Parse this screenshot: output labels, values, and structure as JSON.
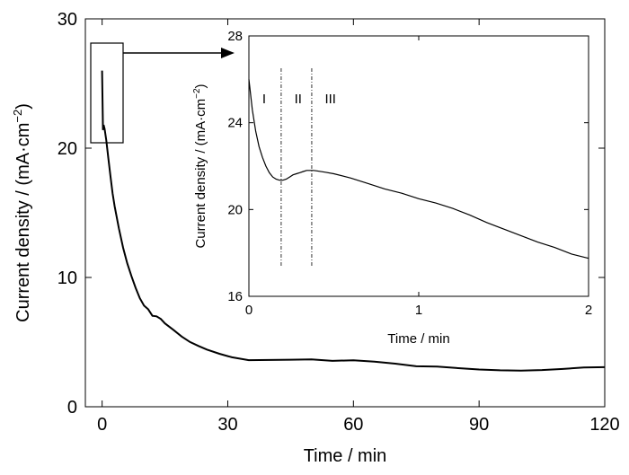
{
  "chart_data": [
    {
      "type": "line",
      "xlabel": "Time / min",
      "ylabel_text": "Current density / (mA·cm",
      "ylabel_sup": "−2",
      "ylabel_close": ")",
      "xlim": [
        -4,
        120
      ],
      "ylim": [
        0,
        30
      ],
      "xticks": [
        0,
        30,
        60,
        90,
        120
      ],
      "yticks": [
        0,
        10,
        20,
        30
      ],
      "grid": false,
      "series": [
        {
          "x": [
            0,
            0.2,
            0.35,
            0.6,
            1,
            1.5,
            2,
            2.5,
            3,
            4,
            5,
            6,
            7,
            8,
            9,
            10,
            11,
            12,
            13,
            14,
            15,
            17,
            19,
            21,
            23,
            25,
            28,
            31,
            35,
            40,
            45,
            50,
            55,
            60,
            65,
            70,
            75,
            80,
            85,
            90,
            95,
            100,
            105,
            110,
            115,
            120
          ],
          "y": [
            26,
            21.4,
            21.8,
            21.5,
            20.6,
            19.2,
            17.8,
            16.5,
            15.5,
            13.8,
            12.3,
            11.1,
            10.1,
            9.2,
            8.5,
            7.8,
            7.4,
            6.8,
            6.7,
            6.5,
            6.2,
            5.8,
            5.4,
            5.1,
            4.9,
            4.7,
            4.4,
            4.1,
            3.8,
            3.7,
            3.6,
            3.5,
            3.3,
            3.3,
            3.2,
            3.1,
            3.0,
            3.1,
            3.1,
            3.1,
            3.1,
            3.1,
            3.1,
            3.1,
            3.1,
            3.0
          ]
        }
      ]
    },
    {
      "type": "line",
      "xlabel": "Time / min",
      "ylabel_text": "Current density / (mA·cm",
      "ylabel_sup": "−2",
      "ylabel_close": ")",
      "xlim": [
        0,
        2
      ],
      "ylim": [
        16,
        28
      ],
      "xticks": [
        0,
        1,
        2
      ],
      "yticks": [
        16,
        20,
        24,
        28
      ],
      "grid": false,
      "regions": [
        {
          "label": "I",
          "x": 0.09
        },
        {
          "label": "II",
          "x": 0.29
        },
        {
          "label": "III",
          "x": 0.48
        }
      ],
      "dividers": [
        0.19,
        0.37
      ],
      "series": [
        {
          "x": [
            0,
            0.02,
            0.04,
            0.06,
            0.08,
            0.1,
            0.12,
            0.14,
            0.16,
            0.18,
            0.2,
            0.22,
            0.24,
            0.26,
            0.28,
            0.3,
            0.32,
            0.34,
            0.36,
            0.38,
            0.4,
            0.45,
            0.5,
            0.6,
            0.7,
            0.8,
            0.9,
            1.0,
            1.1,
            1.2,
            1.3,
            1.4,
            1.5,
            1.6,
            1.7,
            1.8,
            1.9,
            2.0
          ],
          "y": [
            26.0,
            24.6,
            23.6,
            22.9,
            22.4,
            22.0,
            21.7,
            21.5,
            21.4,
            21.35,
            21.35,
            21.4,
            21.5,
            21.6,
            21.65,
            21.7,
            21.75,
            21.8,
            21.8,
            21.8,
            21.78,
            21.72,
            21.65,
            21.45,
            21.2,
            20.95,
            20.75,
            20.5,
            20.3,
            20.05,
            19.75,
            19.4,
            19.1,
            18.8,
            18.5,
            18.25,
            17.95,
            17.75
          ]
        }
      ]
    }
  ]
}
